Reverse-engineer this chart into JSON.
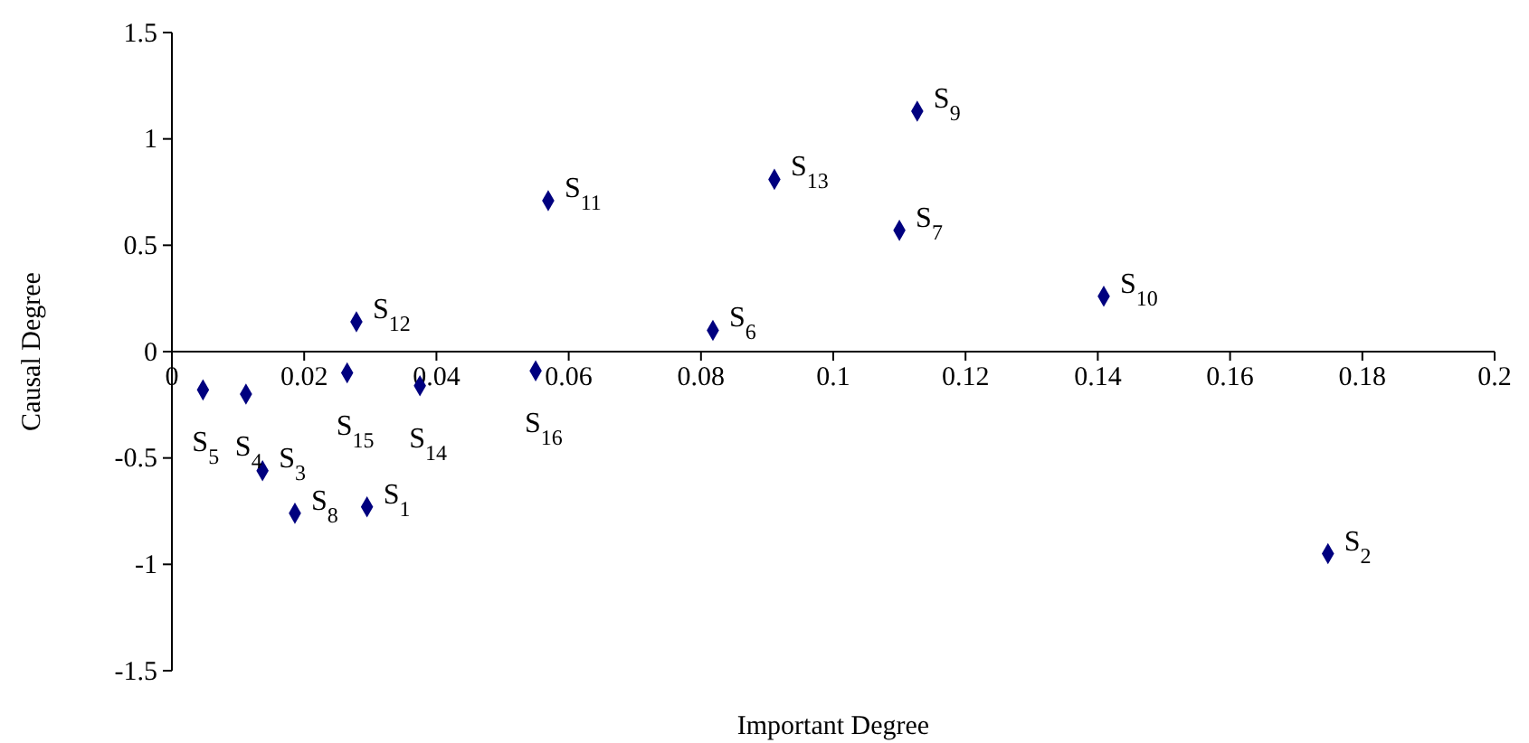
{
  "chart_data": {
    "type": "scatter",
    "xlabel": "Important Degree",
    "ylabel": "Causal Degree",
    "x": [
      0.0295,
      0.1748,
      0.0137,
      0.0112,
      0.0047,
      0.0818,
      0.11,
      0.0186,
      0.1127,
      0.1409,
      0.0569,
      0.0279,
      0.0911,
      0.0375,
      0.0265,
      0.055
    ],
    "series": [
      {
        "color": "#00007f",
        "values": [
          -0.73,
          -0.95,
          -0.56,
          -0.2,
          -0.18,
          0.1,
          0.57,
          -0.76,
          1.13,
          0.26,
          0.71,
          0.14,
          0.81,
          -0.16,
          -0.1,
          -0.09
        ]
      }
    ],
    "marker": "diamond",
    "grid": false,
    "xlim": [
      0,
      0.2
    ],
    "xticks": [
      0,
      0.02,
      0.04,
      0.06,
      0.08,
      0.1,
      0.12,
      0.14,
      0.16,
      0.18,
      0.2
    ],
    "ylim": [
      -1.5,
      1.5
    ],
    "yticks": [
      -1.5,
      -1,
      -0.5,
      0,
      0.5,
      1,
      1.5
    ],
    "annotations": [
      {
        "text": "S$_{1}$",
        "x": 0.0295,
        "y": -0.73
      },
      {
        "text": "S$_{2}$",
        "x": 0.1748,
        "y": -0.95
      },
      {
        "text": "S$_{3}$",
        "x": 0.0137,
        "y": -0.56
      },
      {
        "text": "S$_{4}$",
        "x": 0.0112,
        "y": -0.2
      },
      {
        "text": "S$_{5}$",
        "x": 0.0047,
        "y": -0.18
      },
      {
        "text": "S$_{6}$",
        "x": 0.0818,
        "y": 0.1
      },
      {
        "text": "S$_{7}$",
        "x": 0.11,
        "y": 0.57
      },
      {
        "text": "S$_{8}$",
        "x": 0.0186,
        "y": -0.76
      },
      {
        "text": "S$_{9}$",
        "x": 0.1127,
        "y": 1.13
      },
      {
        "text": "S$_{10}$",
        "x": 0.1409,
        "y": 0.26
      },
      {
        "text": "S$_{11}$",
        "x": 0.0569,
        "y": 0.71
      },
      {
        "text": "S$_{12}$",
        "x": 0.0279,
        "y": 0.14
      },
      {
        "text": "S$_{13}$",
        "x": 0.0911,
        "y": 0.81
      },
      {
        "text": "S$_{14}$",
        "x": 0.0375,
        "y": -0.16
      },
      {
        "text": "S$_{15}$",
        "x": 0.0265,
        "y": -0.1
      },
      {
        "text": "S$_{16}$",
        "x": 0.055,
        "y": -0.09
      }
    ]
  }
}
